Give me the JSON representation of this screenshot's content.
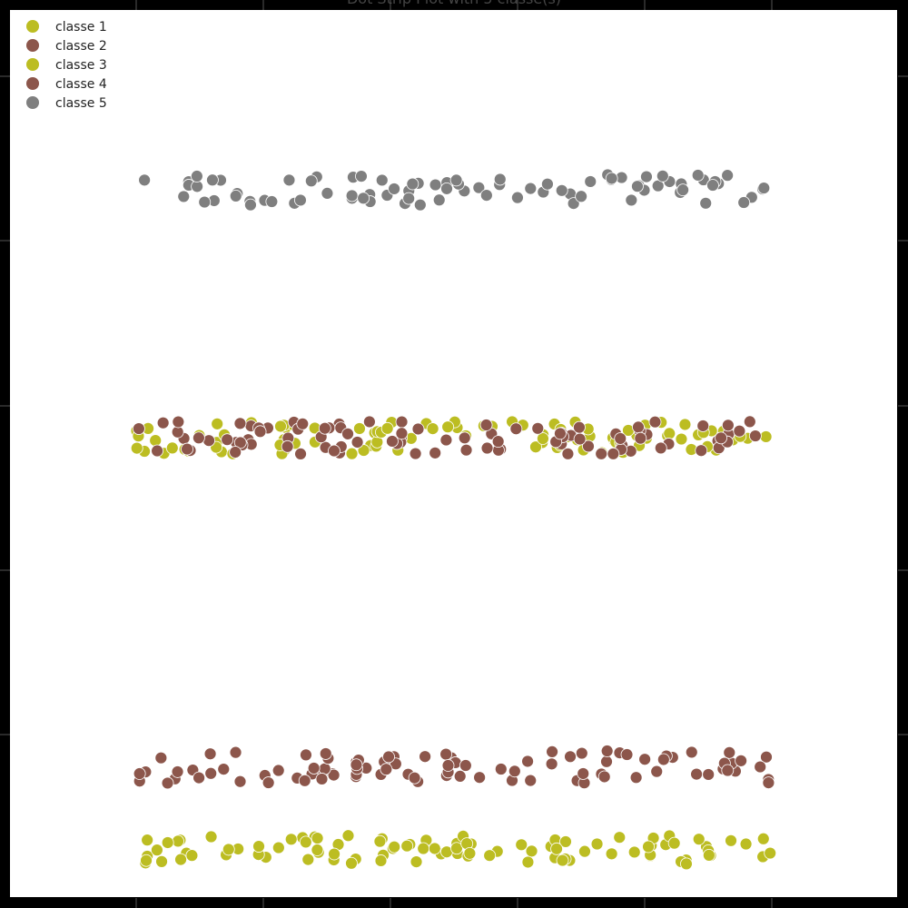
{
  "chart_data": {
    "type": "scatter",
    "title": "Dot Strip Plot with 5 classe(s)",
    "xlabel": "",
    "ylabel": "",
    "legend_position": "top-left",
    "grid": false,
    "legend": [
      {
        "name": "classe 1",
        "color": "#bcbd22"
      },
      {
        "name": "classe 2",
        "color": "#8c564b"
      },
      {
        "name": "classe 3",
        "color": "#bcbd22"
      },
      {
        "name": "classe 4",
        "color": "#8c564b"
      },
      {
        "name": "classe 5",
        "color": "#7f7f7f"
      }
    ],
    "series": [
      {
        "name": "classe 1",
        "color": "#bcbd22",
        "band": 1,
        "count": 95,
        "seed": 11
      },
      {
        "name": "classe 2",
        "color": "#8c564b",
        "band": 2,
        "count": 95,
        "seed": 23
      },
      {
        "name": "classe 3",
        "color": "#bcbd22",
        "band": 3,
        "count": 95,
        "seed": 37
      },
      {
        "name": "classe 4",
        "color": "#8c564b",
        "band": 3,
        "count": 95,
        "seed": 51
      },
      {
        "name": "classe 5",
        "color": "#7f7f7f",
        "band": 4,
        "count": 85,
        "seed": 67
      }
    ],
    "xlim": [
      0,
      100
    ]
  }
}
